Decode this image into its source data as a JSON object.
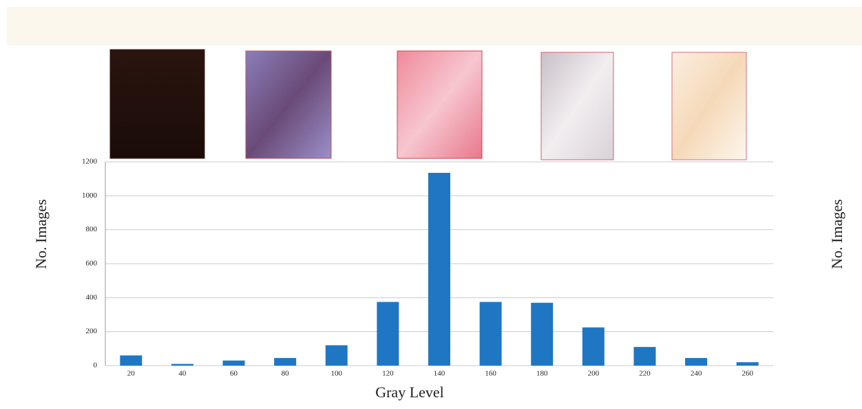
{
  "chart_data": {
    "type": "bar",
    "xlabel": "Gray Level",
    "ylabel": "No. Images",
    "categories": [
      "20",
      "40",
      "60",
      "80",
      "100",
      "120",
      "140",
      "160",
      "180",
      "200",
      "220",
      "240",
      "260"
    ],
    "values": [
      60,
      10,
      30,
      45,
      120,
      375,
      1135,
      375,
      370,
      225,
      110,
      45,
      20
    ],
    "color": "#1f77c4",
    "ylim": [
      0,
      1200
    ],
    "yticks": [
      0,
      200,
      400,
      600,
      800,
      1000,
      1200
    ],
    "grid": true
  },
  "fragment": {
    "ylabel": "No. Images"
  }
}
